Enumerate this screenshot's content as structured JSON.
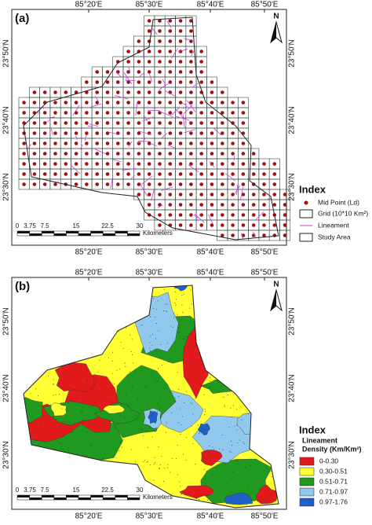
{
  "panels": [
    {
      "label": "(a)",
      "lon_labels": [
        "85°20'E",
        "85°30'E",
        "85°40'E",
        "85°50'E"
      ],
      "lat_labels": [
        "23°50'N",
        "23°40'N",
        "23°30'N"
      ],
      "north": "N",
      "scale_labels": [
        "0",
        "3.75",
        "7.5",
        "15",
        "22.5",
        "30"
      ],
      "scale_unit": "Kilometers",
      "legend": {
        "title": "Index",
        "items": [
          "Mid Point (Ld)",
          "Grid (10*10 Km²)",
          "Lineament",
          "Study Area"
        ]
      }
    },
    {
      "label": "(b)",
      "lon_labels": [
        "85°20'E",
        "85°30'E",
        "85°40'E",
        "85°50'E"
      ],
      "lat_labels": [
        "23°50'N",
        "23°40'N",
        "23°30'N"
      ],
      "north": "N",
      "scale_labels": [
        "0",
        "3.75",
        "7.5",
        "15",
        "22.5",
        "30"
      ],
      "scale_unit": "Kilometers",
      "legend": {
        "title": "Index",
        "subtitle": [
          "Lineament",
          "Density (Km/Km²)"
        ],
        "items": [
          {
            "label": "0-0.30",
            "color": "#e31a1c"
          },
          {
            "label": "0.30-0.51",
            "color": "#ffff33"
          },
          {
            "label": "0.51-0.71",
            "color": "#1f9a1f"
          },
          {
            "label": "0.71-0.97",
            "color": "#90c8ee"
          },
          {
            "label": "0.97-1.76",
            "color": "#1f5fc8"
          }
        ]
      }
    }
  ]
}
